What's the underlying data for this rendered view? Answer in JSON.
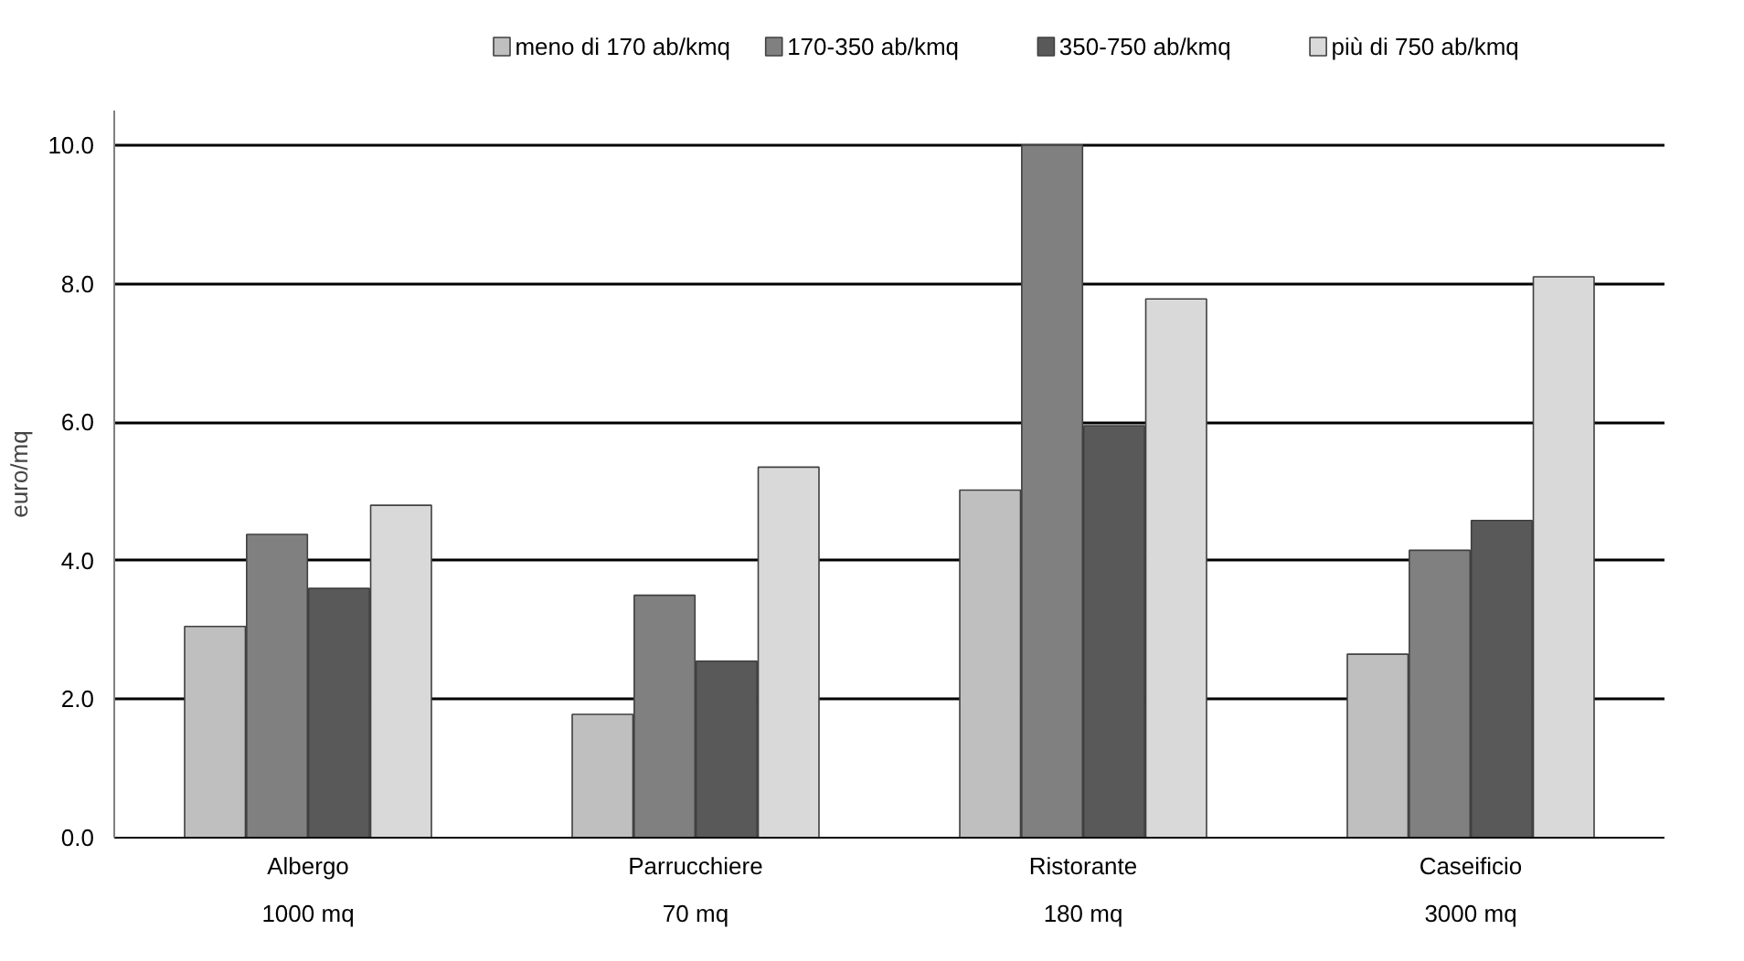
{
  "chart_data": {
    "type": "bar",
    "ylabel": "euro/mq",
    "categories": [
      "Albergo\n1000 mq",
      "Parrucchiere\n70 mq",
      "Ristorante\n180 mq",
      "Caseificio\n3000 mq"
    ],
    "series": [
      {
        "name": "meno di 170 ab/kmq",
        "color": "#bfbfbf",
        "values": [
          3.05,
          1.78,
          5.02,
          2.65
        ]
      },
      {
        "name": "170-350 ab/kmq",
        "color": "#808080",
        "values": [
          4.38,
          3.5,
          10.0,
          4.15
        ]
      },
      {
        "name": "350-750 ab/kmq",
        "color": "#595959",
        "values": [
          3.6,
          2.55,
          5.95,
          4.58
        ]
      },
      {
        "name": "più di 750 ab/kmq",
        "color": "#d9d9d9",
        "values": [
          4.8,
          5.35,
          7.78,
          8.1
        ]
      }
    ],
    "ylim": [
      0,
      10.5
    ],
    "yticks": [
      {
        "value": 0,
        "label": "0.0"
      },
      {
        "value": 2,
        "label": "2.0"
      },
      {
        "value": 4,
        "label": "4.0"
      },
      {
        "value": 6,
        "label": "6.0"
      },
      {
        "value": 8,
        "label": "8.0"
      },
      {
        "value": 10,
        "label": "10.0"
      }
    ],
    "grid": "y",
    "legend": "top"
  }
}
